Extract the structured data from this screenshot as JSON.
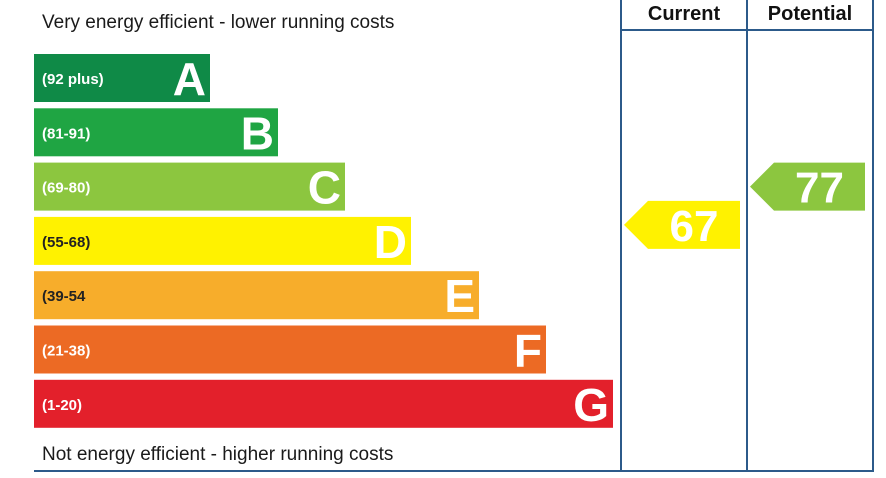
{
  "header": {
    "top_text": "Very energy efficient - lower running costs",
    "bottom_text": "Not energy efficient - higher running costs",
    "current_label": "Current",
    "potential_label": "Potential"
  },
  "chart_data": {
    "type": "bar",
    "bands": [
      {
        "letter": "A",
        "range": "(92 plus)",
        "min": 92,
        "max": 100,
        "color": "#0f8a47"
      },
      {
        "letter": "B",
        "range": "(81-91)",
        "min": 81,
        "max": 91,
        "color": "#1fa543"
      },
      {
        "letter": "C",
        "range": "(69-80)",
        "min": 69,
        "max": 80,
        "color": "#8cc63f"
      },
      {
        "letter": "D",
        "range": "(55-68)",
        "min": 55,
        "max": 68,
        "color": "#fff200"
      },
      {
        "letter": "E",
        "range": "(39-54",
        "min": 39,
        "max": 54,
        "color": "#f7ad2b"
      },
      {
        "letter": "F",
        "range": "(21-38)",
        "min": 21,
        "max": 38,
        "color": "#ec6a24"
      },
      {
        "letter": "G",
        "range": "(1-20)",
        "min": 1,
        "max": 20,
        "color": "#e3202b"
      }
    ],
    "current": {
      "value": 67,
      "band": "D",
      "color": "#fff200"
    },
    "potential": {
      "value": 77,
      "band": "C",
      "color": "#8cc63f"
    }
  }
}
